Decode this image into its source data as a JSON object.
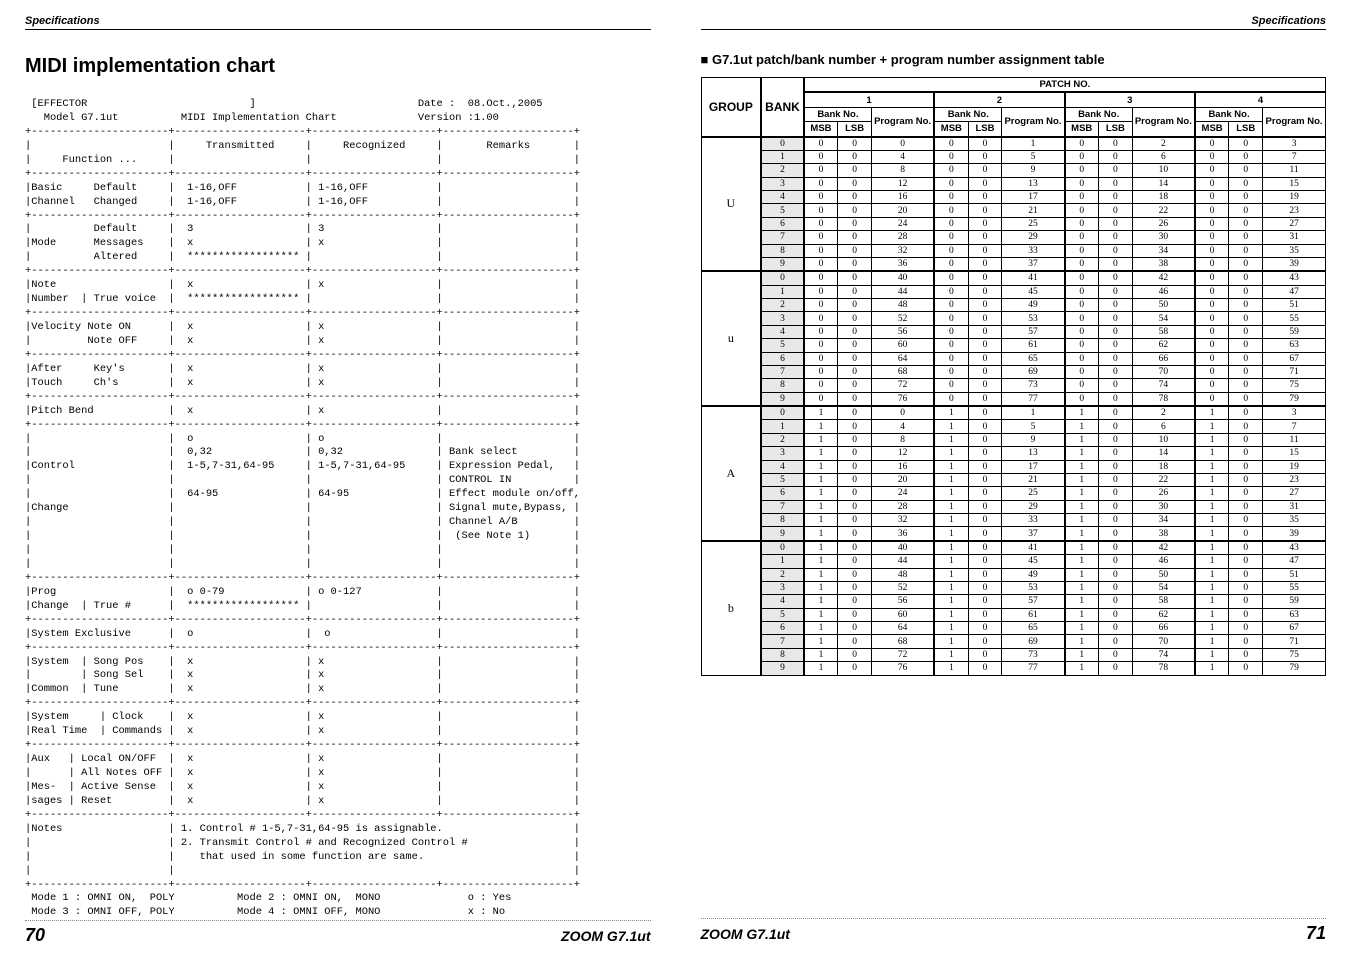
{
  "left": {
    "spec_label": "Specifications",
    "heading": "MIDI implementation chart",
    "chart_lines": [
      " [EFFECTOR                          ]                          Date :  08.Oct.,2005",
      "   Model G7.1ut          MIDI Implementation Chart             Version :1.00",
      "+----------------------+---------------------+--------------------+---------------------+",
      "|                      |     Transmitted     |     Recognized     |       Remarks       |",
      "|     Function ...     |                     |                    |                     |",
      "+----------------------+---------------------+--------------------+---------------------+",
      "|Basic     Default     |  1-16,OFF           | 1-16,OFF           |                     |",
      "|Channel   Changed     |  1-16,OFF           | 1-16,OFF           |                     |",
      "+----------------------+---------------------+--------------------+---------------------+",
      "|          Default     |  3                  | 3                  |                     |",
      "|Mode      Messages    |  x                  | x                  |                     |",
      "|          Altered     |  ****************** |                    |                     |",
      "+----------------------+---------------------+--------------------+---------------------+",
      "|Note                  |  x                  | x                  |                     |",
      "|Number  | True voice  |  ****************** |                    |                     |",
      "+----------------------+---------------------+--------------------+---------------------+",
      "|Velocity Note ON      |  x                  | x                  |                     |",
      "|         Note OFF     |  x                  | x                  |                     |",
      "+----------------------+---------------------+--------------------+---------------------+",
      "|After     Key's       |  x                  | x                  |                     |",
      "|Touch     Ch's        |  x                  | x                  |                     |",
      "+----------------------+---------------------+--------------------+---------------------+",
      "|Pitch Bend            |  x                  | x                  |                     |",
      "+----------------------+---------------------+--------------------+---------------------+",
      "|                      |  o                  | o                  |                     |",
      "|                      |  0,32               | 0,32               | Bank select         |",
      "|Control               |  1-5,7-31,64-95     | 1-5,7-31,64-95     | Expression Pedal,   |",
      "|                      |                     |                    | CONTROL IN          |",
      "|                      |  64-95              | 64-95              | Effect module on/off,",
      "|Change                |                     |                    | Signal mute,Bypass, |",
      "|                      |                     |                    | Channel A/B         |",
      "|                      |                     |                    |  (See Note 1)       |",
      "|                      |                     |                    |                     |",
      "|                      |                     |                    |                     |",
      "+----------------------+---------------------+--------------------+---------------------+",
      "|Prog                  |  o 0-79             | o 0-127            |                     |",
      "|Change  | True #      |  ****************** |                    |                     |",
      "+----------------------+---------------------+--------------------+---------------------+",
      "|System Exclusive      |  o                  |  o                 |                     |",
      "+----------------------+---------------------+--------------------+---------------------+",
      "|System  | Song Pos    |  x                  | x                  |                     |",
      "|        | Song Sel    |  x                  | x                  |                     |",
      "|Common  | Tune        |  x                  | x                  |                     |",
      "+----------------------+---------------------+--------------------+---------------------+",
      "|System     | Clock    |  x                  | x                  |                     |",
      "|Real Time  | Commands |  x                  | x                  |                     |",
      "+----------------------+---------------------+--------------------+---------------------+",
      "|Aux   | Local ON/OFF  |  x                  | x                  |                     |",
      "|      | All Notes OFF |  x                  | x                  |                     |",
      "|Mes-  | Active Sense  |  x                  | x                  |                     |",
      "|sages | Reset         |  x                  | x                  |                     |",
      "+----------------------+---------------------+--------------------+---------------------+",
      "|Notes                 | 1. Control # 1-5,7-31,64-95 is assignable.                     |",
      "|                      | 2. Transmit Control # and Recognized Control #                 |",
      "|                      |    that used in some function are same.                        |",
      "|                      |                                                                |",
      "+----------------------+---------------------+--------------------+---------------------+",
      " Mode 1 : OMNI ON,  POLY          Mode 2 : OMNI ON,  MONO              o : Yes",
      " Mode 3 : OMNI OFF, POLY          Mode 4 : OMNI OFF, MONO              x : No"
    ],
    "footer_page": "70",
    "footer_model": "ZOOM G7.1ut"
  },
  "right": {
    "spec_label": "Specifications",
    "heading": "G7.1ut patch/bank number + program number assignment table",
    "col_group_label": "GROUP",
    "col_bank_label": "BANK",
    "patch_no_label": "PATCH NO.",
    "patch_cols": [
      "1",
      "2",
      "3",
      "4"
    ],
    "bankno_label": "Bank No.",
    "prog_label": "Program No.",
    "msb_label": "MSB",
    "lsb_label": "LSB",
    "groups": [
      {
        "name": "U",
        "banks": [
          "0",
          "1",
          "2",
          "3",
          "4",
          "5",
          "6",
          "7",
          "8",
          "9"
        ],
        "rows": [
          [
            0,
            0,
            0,
            0,
            0,
            1,
            0,
            0,
            2,
            0,
            0,
            3
          ],
          [
            0,
            0,
            4,
            0,
            0,
            5,
            0,
            0,
            6,
            0,
            0,
            7
          ],
          [
            0,
            0,
            8,
            0,
            0,
            9,
            0,
            0,
            10,
            0,
            0,
            11
          ],
          [
            0,
            0,
            12,
            0,
            0,
            13,
            0,
            0,
            14,
            0,
            0,
            15
          ],
          [
            0,
            0,
            16,
            0,
            0,
            17,
            0,
            0,
            18,
            0,
            0,
            19
          ],
          [
            0,
            0,
            20,
            0,
            0,
            21,
            0,
            0,
            22,
            0,
            0,
            23
          ],
          [
            0,
            0,
            24,
            0,
            0,
            25,
            0,
            0,
            26,
            0,
            0,
            27
          ],
          [
            0,
            0,
            28,
            0,
            0,
            29,
            0,
            0,
            30,
            0,
            0,
            31
          ],
          [
            0,
            0,
            32,
            0,
            0,
            33,
            0,
            0,
            34,
            0,
            0,
            35
          ],
          [
            0,
            0,
            36,
            0,
            0,
            37,
            0,
            0,
            38,
            0,
            0,
            39
          ]
        ]
      },
      {
        "name": "u",
        "banks": [
          "0",
          "1",
          "2",
          "3",
          "4",
          "5",
          "6",
          "7",
          "8",
          "9"
        ],
        "rows": [
          [
            0,
            0,
            40,
            0,
            0,
            41,
            0,
            0,
            42,
            0,
            0,
            43
          ],
          [
            0,
            0,
            44,
            0,
            0,
            45,
            0,
            0,
            46,
            0,
            0,
            47
          ],
          [
            0,
            0,
            48,
            0,
            0,
            49,
            0,
            0,
            50,
            0,
            0,
            51
          ],
          [
            0,
            0,
            52,
            0,
            0,
            53,
            0,
            0,
            54,
            0,
            0,
            55
          ],
          [
            0,
            0,
            56,
            0,
            0,
            57,
            0,
            0,
            58,
            0,
            0,
            59
          ],
          [
            0,
            0,
            60,
            0,
            0,
            61,
            0,
            0,
            62,
            0,
            0,
            63
          ],
          [
            0,
            0,
            64,
            0,
            0,
            65,
            0,
            0,
            66,
            0,
            0,
            67
          ],
          [
            0,
            0,
            68,
            0,
            0,
            69,
            0,
            0,
            70,
            0,
            0,
            71
          ],
          [
            0,
            0,
            72,
            0,
            0,
            73,
            0,
            0,
            74,
            0,
            0,
            75
          ],
          [
            0,
            0,
            76,
            0,
            0,
            77,
            0,
            0,
            78,
            0,
            0,
            79
          ]
        ]
      },
      {
        "name": "A",
        "banks": [
          "0",
          "1",
          "2",
          "3",
          "4",
          "5",
          "6",
          "7",
          "8",
          "9"
        ],
        "rows": [
          [
            1,
            0,
            0,
            1,
            0,
            1,
            1,
            0,
            2,
            1,
            0,
            3
          ],
          [
            1,
            0,
            4,
            1,
            0,
            5,
            1,
            0,
            6,
            1,
            0,
            7
          ],
          [
            1,
            0,
            8,
            1,
            0,
            9,
            1,
            0,
            10,
            1,
            0,
            11
          ],
          [
            1,
            0,
            12,
            1,
            0,
            13,
            1,
            0,
            14,
            1,
            0,
            15
          ],
          [
            1,
            0,
            16,
            1,
            0,
            17,
            1,
            0,
            18,
            1,
            0,
            19
          ],
          [
            1,
            0,
            20,
            1,
            0,
            21,
            1,
            0,
            22,
            1,
            0,
            23
          ],
          [
            1,
            0,
            24,
            1,
            0,
            25,
            1,
            0,
            26,
            1,
            0,
            27
          ],
          [
            1,
            0,
            28,
            1,
            0,
            29,
            1,
            0,
            30,
            1,
            0,
            31
          ],
          [
            1,
            0,
            32,
            1,
            0,
            33,
            1,
            0,
            34,
            1,
            0,
            35
          ],
          [
            1,
            0,
            36,
            1,
            0,
            37,
            1,
            0,
            38,
            1,
            0,
            39
          ]
        ]
      },
      {
        "name": "b",
        "banks": [
          "0",
          "1",
          "2",
          "3",
          "4",
          "5",
          "6",
          "7",
          "8",
          "9"
        ],
        "rows": [
          [
            1,
            0,
            40,
            1,
            0,
            41,
            1,
            0,
            42,
            1,
            0,
            43
          ],
          [
            1,
            0,
            44,
            1,
            0,
            45,
            1,
            0,
            46,
            1,
            0,
            47
          ],
          [
            1,
            0,
            48,
            1,
            0,
            49,
            1,
            0,
            50,
            1,
            0,
            51
          ],
          [
            1,
            0,
            52,
            1,
            0,
            53,
            1,
            0,
            54,
            1,
            0,
            55
          ],
          [
            1,
            0,
            56,
            1,
            0,
            57,
            1,
            0,
            58,
            1,
            0,
            59
          ],
          [
            1,
            0,
            60,
            1,
            0,
            61,
            1,
            0,
            62,
            1,
            0,
            63
          ],
          [
            1,
            0,
            64,
            1,
            0,
            65,
            1,
            0,
            66,
            1,
            0,
            67
          ],
          [
            1,
            0,
            68,
            1,
            0,
            69,
            1,
            0,
            70,
            1,
            0,
            71
          ],
          [
            1,
            0,
            72,
            1,
            0,
            73,
            1,
            0,
            74,
            1,
            0,
            75
          ],
          [
            1,
            0,
            76,
            1,
            0,
            77,
            1,
            0,
            78,
            1,
            0,
            79
          ]
        ]
      }
    ],
    "footer_model": "ZOOM G7.1ut",
    "footer_page": "71"
  }
}
